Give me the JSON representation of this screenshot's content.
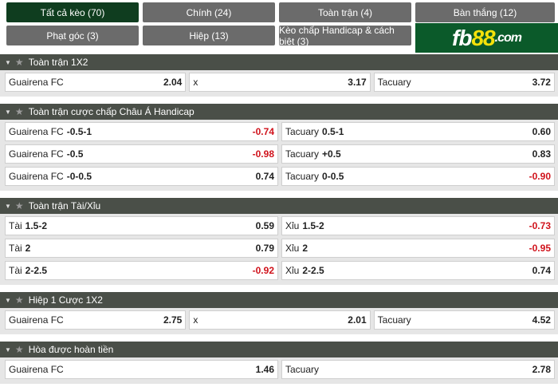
{
  "tabs": [
    {
      "label": "Tất cả kèo (70)",
      "active": true
    },
    {
      "label": "Chính (24)"
    },
    {
      "label": "Toàn trận (4)"
    },
    {
      "label": "Bàn thắng (12)"
    },
    {
      "label": "Phạt góc (3)"
    },
    {
      "label": "Hiệp (13)"
    },
    {
      "label": "Kèo chấp Handicap & cách biệt (3)"
    }
  ],
  "logo": {
    "part1": "fb",
    "part2": "88",
    "part3": ".com"
  },
  "colors": {
    "header": "#4a4f48",
    "active_tab": "#0f3d1f",
    "tab": "#6b6b6b",
    "negative": "#d0121b",
    "logo_bg": "#0b5a2a"
  },
  "sections": [
    {
      "title": "Toàn trận 1X2",
      "rows": [
        [
          {
            "name": "Guairena FC",
            "odd": "2.04"
          },
          {
            "name": "x",
            "odd": "3.17"
          },
          {
            "name": "Tacuary",
            "odd": "3.72"
          }
        ]
      ]
    },
    {
      "title": "Toàn trận cược chấp Châu Á Handicap",
      "rows": [
        [
          {
            "name": "Guairena FC",
            "hc": "-0.5-1",
            "odd": "-0.74"
          },
          {
            "name": "Tacuary",
            "hc": "0.5-1",
            "odd": "0.60"
          }
        ],
        [
          {
            "name": "Guairena FC",
            "hc": "-0.5",
            "odd": "-0.98"
          },
          {
            "name": "Tacuary",
            "hc": "+0.5",
            "odd": "0.83"
          }
        ],
        [
          {
            "name": "Guairena FC",
            "hc": "-0-0.5",
            "odd": "0.74"
          },
          {
            "name": "Tacuary",
            "hc": "0-0.5",
            "odd": "-0.90"
          }
        ]
      ]
    },
    {
      "title": "Toàn trận Tài/Xỉu",
      "rows": [
        [
          {
            "name": "Tài",
            "hc": "1.5-2",
            "odd": "0.59"
          },
          {
            "name": "Xỉu",
            "hc": "1.5-2",
            "odd": "-0.73"
          }
        ],
        [
          {
            "name": "Tài",
            "hc": "2",
            "odd": "0.79"
          },
          {
            "name": "Xỉu",
            "hc": "2",
            "odd": "-0.95"
          }
        ],
        [
          {
            "name": "Tài",
            "hc": "2-2.5",
            "odd": "-0.92"
          },
          {
            "name": "Xỉu",
            "hc": "2-2.5",
            "odd": "0.74"
          }
        ]
      ]
    },
    {
      "title": "Hiệp 1 Cược 1X2",
      "rows": [
        [
          {
            "name": "Guairena FC",
            "odd": "2.75"
          },
          {
            "name": "x",
            "odd": "2.01"
          },
          {
            "name": "Tacuary",
            "odd": "4.52"
          }
        ]
      ]
    },
    {
      "title": "Hòa được hoàn tiền",
      "rows": [
        [
          {
            "name": "Guairena FC",
            "odd": "1.46"
          },
          {
            "name": "Tacuary",
            "odd": "2.78"
          }
        ]
      ]
    }
  ]
}
